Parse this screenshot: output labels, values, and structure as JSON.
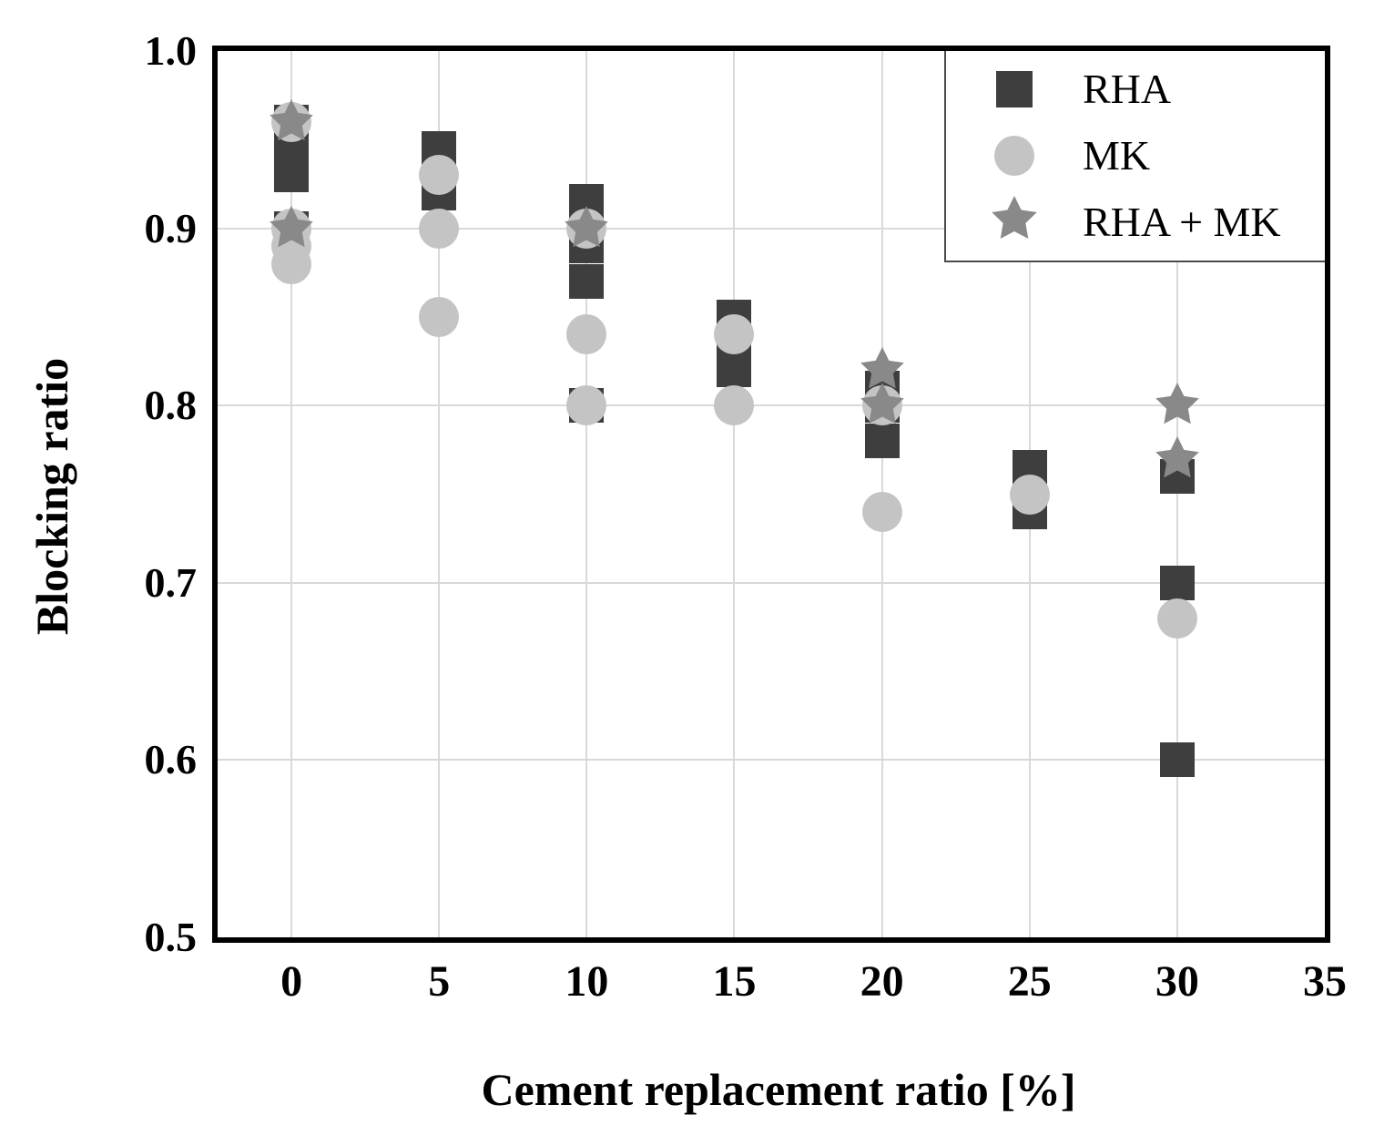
{
  "chart_data": {
    "type": "scatter",
    "title": "",
    "xlabel": "Cement replacement ratio [%]",
    "ylabel": "Blocking ratio",
    "xlim": [
      -2.5,
      35
    ],
    "ylim": [
      0.5,
      1.0
    ],
    "x_ticks": [
      0,
      5,
      10,
      15,
      20,
      25,
      30,
      35
    ],
    "y_ticks": [
      1.0,
      0.9,
      0.8,
      0.7,
      0.6,
      0.5
    ],
    "y_tick_labels": [
      "1.0",
      "0.9",
      "0.8",
      "0.7",
      "0.6",
      "0.5"
    ],
    "grid": true,
    "colors": {
      "grid": "#d9d9d9",
      "frame": "#000000",
      "rha": "#3e3e3e",
      "mk": "#c4c4c4",
      "rha_mk": "#898989"
    },
    "legend": {
      "position": "top-right",
      "entries": [
        "RHA",
        "MK",
        "RHA + MK"
      ]
    },
    "series": [
      {
        "name": "RHA",
        "marker": "square",
        "color": "#3e3e3e",
        "points": [
          [
            0,
            0.96
          ],
          [
            0,
            0.945
          ],
          [
            0,
            0.93
          ],
          [
            0,
            0.9
          ],
          [
            5,
            0.945
          ],
          [
            5,
            0.93
          ],
          [
            5,
            0.92
          ],
          [
            10,
            0.915
          ],
          [
            10,
            0.9
          ],
          [
            10,
            0.89
          ],
          [
            10,
            0.87
          ],
          [
            10,
            0.8
          ],
          [
            15,
            0.85
          ],
          [
            15,
            0.835
          ],
          [
            15,
            0.82
          ],
          [
            20,
            0.81
          ],
          [
            20,
            0.8
          ],
          [
            20,
            0.78
          ],
          [
            25,
            0.765
          ],
          [
            25,
            0.74
          ],
          [
            30,
            0.76
          ],
          [
            30,
            0.7
          ],
          [
            30,
            0.6
          ]
        ]
      },
      {
        "name": "MK",
        "marker": "circle",
        "color": "#c4c4c4",
        "points": [
          [
            0,
            0.96
          ],
          [
            0,
            0.9
          ],
          [
            0,
            0.89
          ],
          [
            0,
            0.88
          ],
          [
            5,
            0.93
          ],
          [
            5,
            0.9
          ],
          [
            5,
            0.85
          ],
          [
            10,
            0.9
          ],
          [
            10,
            0.84
          ],
          [
            10,
            0.8
          ],
          [
            15,
            0.84
          ],
          [
            15,
            0.8
          ],
          [
            20,
            0.8
          ],
          [
            20,
            0.74
          ],
          [
            25,
            0.75
          ],
          [
            30,
            0.68
          ]
        ]
      },
      {
        "name": "RHA + MK",
        "marker": "star",
        "color": "#898989",
        "points": [
          [
            0,
            0.96
          ],
          [
            0,
            0.9
          ],
          [
            10,
            0.9
          ],
          [
            20,
            0.82
          ],
          [
            20,
            0.8
          ],
          [
            30,
            0.8
          ],
          [
            30,
            0.77
          ]
        ]
      }
    ]
  }
}
